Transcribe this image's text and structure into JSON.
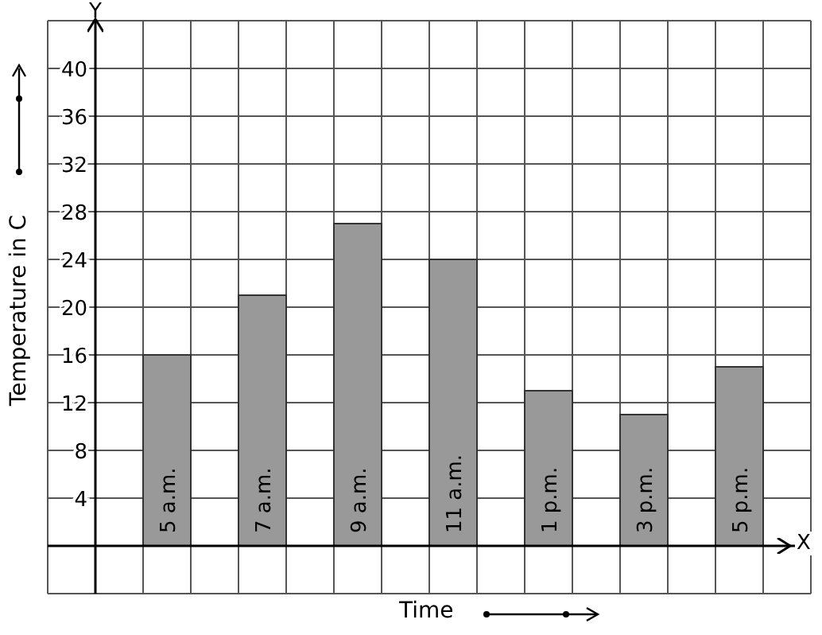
{
  "chart_data": {
    "type": "bar",
    "xlabel": "Time",
    "ylabel": "Temperature in C",
    "categories": [
      "5 a.m.",
      "7 a.m.",
      "9 a.m.",
      "11 a.m.",
      "1 p.m.",
      "3 p.m.",
      "5 p.m."
    ],
    "values": [
      16,
      21,
      27,
      24,
      13,
      11,
      15
    ],
    "color": "#999999",
    "ylim": [
      -4,
      44
    ],
    "yticks": [
      4,
      8,
      12,
      16,
      20,
      24,
      28,
      32,
      36,
      40
    ],
    "grid": true,
    "tick_labels": "y",
    "annotations": [
      "Y",
      "X"
    ]
  }
}
